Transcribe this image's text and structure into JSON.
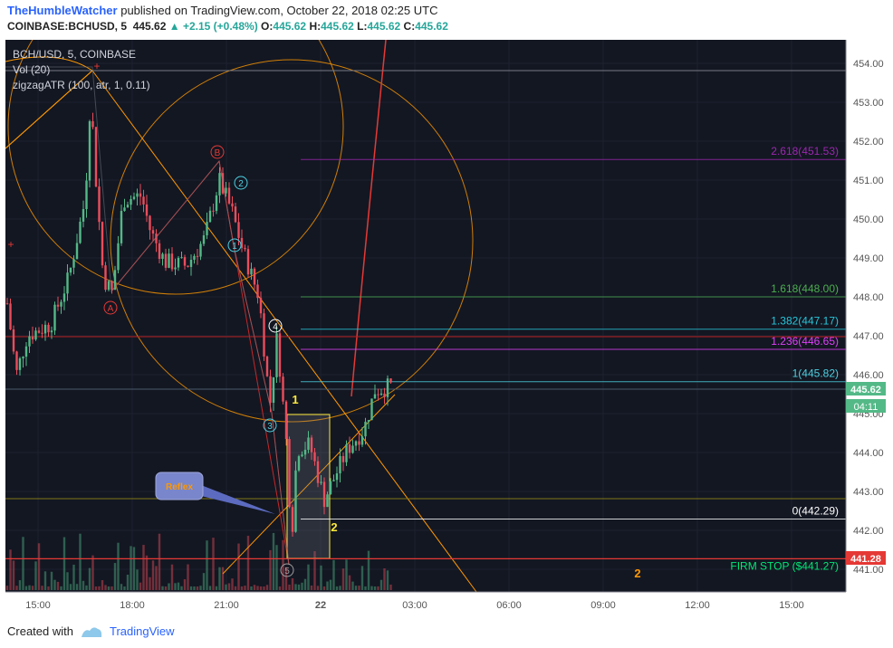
{
  "header": {
    "author": "TheHumbleWatcher",
    "published_text": "published on TradingView.com, October 22, 2018 02:25 UTC",
    "symbol": "COINBASE:BCHUSD, 5",
    "last": "445.62",
    "change_arrow": "▲",
    "change": "+2.15 (+0.48%)",
    "open_label": "O:",
    "open": "445.62",
    "high_label": "H:",
    "high": "445.62",
    "low_label": "L:",
    "low": "445.62",
    "close_label": "C:",
    "close": "445.62"
  },
  "legend": {
    "symbol": "BCH/USD, 5, COINBASE",
    "volume": "Vol (20)",
    "indicator": "zigzagATR (100, atr, 1, 0.11)"
  },
  "price_axis": {
    "ticks": [
      "454.00",
      "453.00",
      "452.00",
      "451.00",
      "450.00",
      "449.00",
      "448.00",
      "447.00",
      "446.00",
      "445.00",
      "444.00",
      "443.00",
      "442.00",
      "441.00"
    ],
    "current_price": "445.62",
    "countdown": "04:11",
    "stop_price": "441.28"
  },
  "time_axis": {
    "ticks": [
      "15:00",
      "18:00",
      "21:00",
      "22",
      "03:00",
      "06:00",
      "09:00",
      "12:00",
      "15:00"
    ]
  },
  "fib_levels": [
    {
      "label": "2.618(451.53)",
      "price": 451.53,
      "color": "#9c27b0"
    },
    {
      "label": "1.618(448.00)",
      "price": 448.0,
      "color": "#4caf50"
    },
    {
      "label": "1.382(447.17)",
      "price": 447.17,
      "color": "#26c6da"
    },
    {
      "label": "1.236(446.65)",
      "price": 446.65,
      "color": "#e040fb"
    },
    {
      "label": "1(445.82)",
      "price": 445.82,
      "color": "#4dd0e1"
    },
    {
      "label": "0(442.29)",
      "price": 442.29,
      "color": "#ffffff"
    }
  ],
  "firm_stop": {
    "label": "FIRM STOP ($441.27)",
    "price": 441.27,
    "color": "#00e676"
  },
  "annotations": {
    "wave_a": "A",
    "wave_b": "B",
    "wave_1": "1",
    "wave_2": "2",
    "wave_3": "3",
    "wave_4": "4",
    "wave_5": "5",
    "box_top": "1",
    "box_bottom": "2",
    "future_2": "2",
    "reflex": "Reflex"
  },
  "colors": {
    "background": "#131722",
    "up": "#53b987",
    "down": "#eb4d5c",
    "grid": "#1e2230",
    "orange": "#ff9800",
    "yellow": "#ffeb3b"
  },
  "footer": {
    "created_with": "Created with",
    "brand": "TradingView"
  }
}
